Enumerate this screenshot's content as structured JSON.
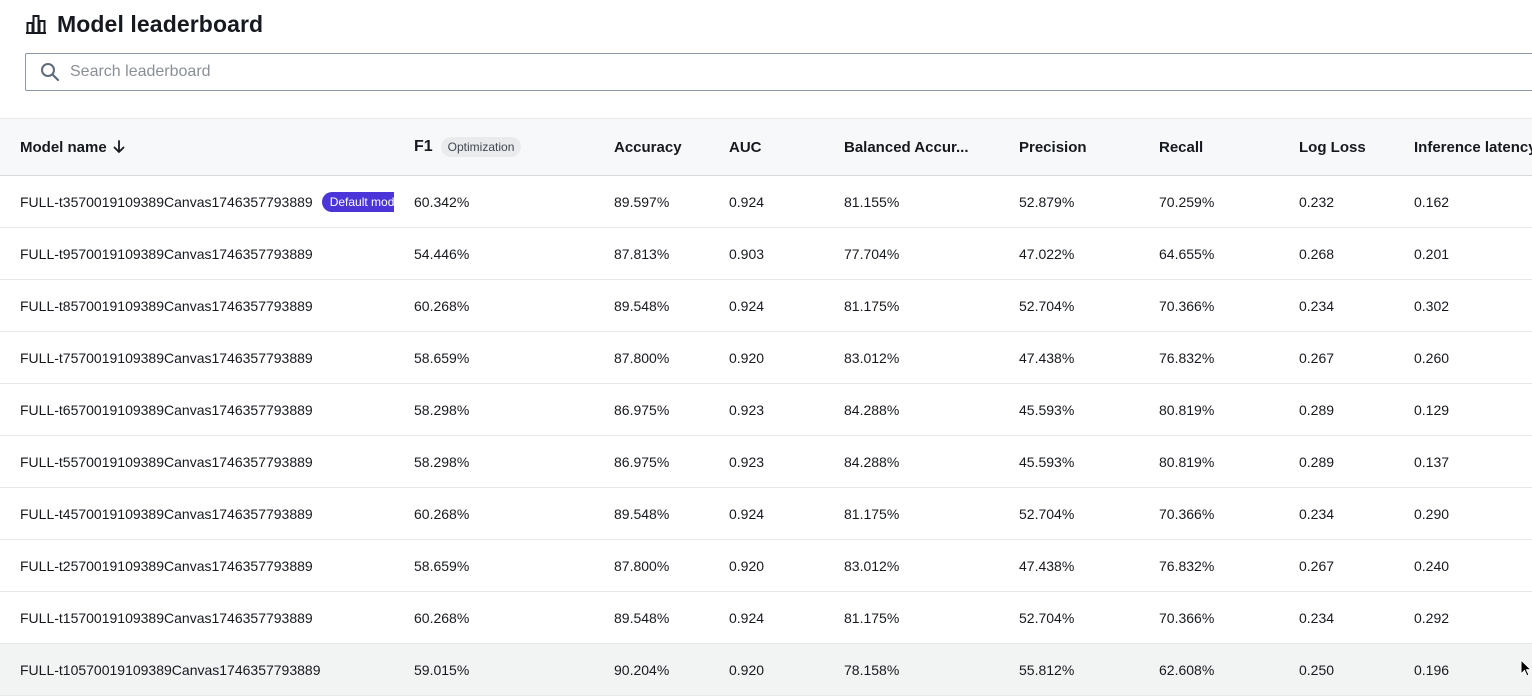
{
  "header": {
    "title": "Model leaderboard",
    "icon": "bar-chart-icon"
  },
  "search": {
    "placeholder": "Search leaderboard",
    "value": ""
  },
  "table": {
    "columns": [
      {
        "label": "Model name",
        "sort": "descending"
      },
      {
        "label": "F1",
        "badge": "Optimization"
      },
      {
        "label": "Accuracy"
      },
      {
        "label": "AUC"
      },
      {
        "label": "Balanced Accur..."
      },
      {
        "label": "Precision"
      },
      {
        "label": "Recall"
      },
      {
        "label": "Log Loss"
      },
      {
        "label": "Inference latency"
      }
    ],
    "default_badge": "Default model",
    "rows": [
      {
        "name": "FULL-t3570019109389Canvas1746357793889",
        "default": true,
        "f1": "60.342%",
        "accuracy": "89.597%",
        "auc": "0.924",
        "balanced_accuracy": "81.155%",
        "precision": "52.879%",
        "recall": "70.259%",
        "log_loss": "0.232",
        "inference_latency": "0.162"
      },
      {
        "name": "FULL-t9570019109389Canvas1746357793889",
        "f1": "54.446%",
        "accuracy": "87.813%",
        "auc": "0.903",
        "balanced_accuracy": "77.704%",
        "precision": "47.022%",
        "recall": "64.655%",
        "log_loss": "0.268",
        "inference_latency": "0.201"
      },
      {
        "name": "FULL-t8570019109389Canvas1746357793889",
        "f1": "60.268%",
        "accuracy": "89.548%",
        "auc": "0.924",
        "balanced_accuracy": "81.175%",
        "precision": "52.704%",
        "recall": "70.366%",
        "log_loss": "0.234",
        "inference_latency": "0.302"
      },
      {
        "name": "FULL-t7570019109389Canvas1746357793889",
        "f1": "58.659%",
        "accuracy": "87.800%",
        "auc": "0.920",
        "balanced_accuracy": "83.012%",
        "precision": "47.438%",
        "recall": "76.832%",
        "log_loss": "0.267",
        "inference_latency": "0.260"
      },
      {
        "name": "FULL-t6570019109389Canvas1746357793889",
        "f1": "58.298%",
        "accuracy": "86.975%",
        "auc": "0.923",
        "balanced_accuracy": "84.288%",
        "precision": "45.593%",
        "recall": "80.819%",
        "log_loss": "0.289",
        "inference_latency": "0.129"
      },
      {
        "name": "FULL-t5570019109389Canvas1746357793889",
        "f1": "58.298%",
        "accuracy": "86.975%",
        "auc": "0.923",
        "balanced_accuracy": "84.288%",
        "precision": "45.593%",
        "recall": "80.819%",
        "log_loss": "0.289",
        "inference_latency": "0.137"
      },
      {
        "name": "FULL-t4570019109389Canvas1746357793889",
        "f1": "60.268%",
        "accuracy": "89.548%",
        "auc": "0.924",
        "balanced_accuracy": "81.175%",
        "precision": "52.704%",
        "recall": "70.366%",
        "log_loss": "0.234",
        "inference_latency": "0.290"
      },
      {
        "name": "FULL-t2570019109389Canvas1746357793889",
        "f1": "58.659%",
        "accuracy": "87.800%",
        "auc": "0.920",
        "balanced_accuracy": "83.012%",
        "precision": "47.438%",
        "recall": "76.832%",
        "log_loss": "0.267",
        "inference_latency": "0.240"
      },
      {
        "name": "FULL-t1570019109389Canvas1746357793889",
        "f1": "60.268%",
        "accuracy": "89.548%",
        "auc": "0.924",
        "balanced_accuracy": "81.175%",
        "precision": "52.704%",
        "recall": "70.366%",
        "log_loss": "0.234",
        "inference_latency": "0.292"
      },
      {
        "name": "FULL-t10570019109389Canvas1746357793889",
        "f1": "59.015%",
        "accuracy": "90.204%",
        "auc": "0.920",
        "balanced_accuracy": "78.158%",
        "precision": "55.812%",
        "recall": "62.608%",
        "log_loss": "0.250",
        "inference_latency": "0.196"
      }
    ]
  },
  "colors": {
    "default_badge_bg": "#4c35d8",
    "header_bg": "#f7f8f9",
    "hover_row_bg": "#f2f3f3"
  }
}
